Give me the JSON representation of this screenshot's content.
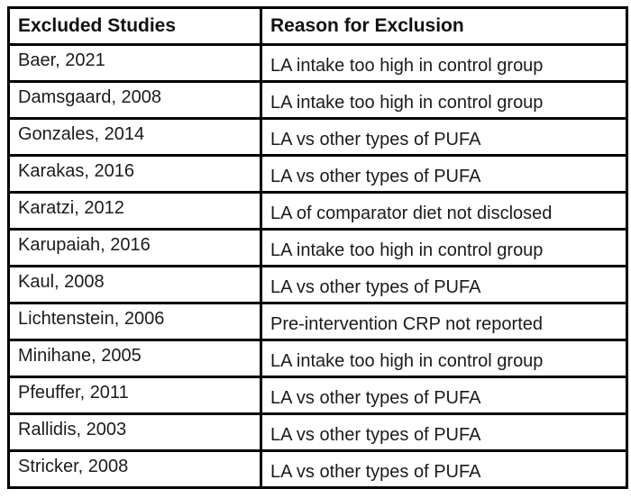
{
  "table": {
    "columns": [
      "Excluded Studies",
      "Reason for Exclusion"
    ],
    "rows": [
      {
        "study": "Baer, 2021",
        "reason": "LA intake too high in control group"
      },
      {
        "study": "Damsgaard, 2008",
        "reason": "LA intake too high in control group"
      },
      {
        "study": "Gonzales, 2014",
        "reason": "LA vs other types of PUFA"
      },
      {
        "study": "Karakas, 2016",
        "reason": "LA vs other types of PUFA"
      },
      {
        "study": "Karatzi, 2012",
        "reason": "LA of comparator diet not disclosed"
      },
      {
        "study": "Karupaiah, 2016",
        "reason": "LA intake too high in control group"
      },
      {
        "study": "Kaul, 2008",
        "reason": "LA vs other types of PUFA"
      },
      {
        "study": "Lichtenstein, 2006",
        "reason": "Pre-intervention CRP not reported"
      },
      {
        "study": "Minihane, 2005",
        "reason": "LA intake too high in control group"
      },
      {
        "study": "Pfeuffer, 2011",
        "reason": "LA vs other types of PUFA"
      },
      {
        "study": "Rallidis, 2003",
        "reason": "LA vs other types of PUFA"
      },
      {
        "study": "Stricker, 2008",
        "reason": "LA vs other types of PUFA"
      }
    ]
  },
  "colors": {
    "border": "#000000",
    "text": "#1b1b1b",
    "background": "#ffffff"
  }
}
